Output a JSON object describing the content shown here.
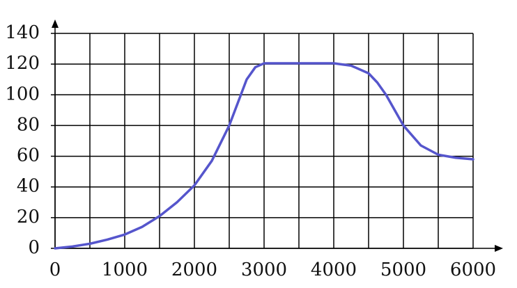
{
  "chart_data": {
    "type": "line",
    "x": [
      0,
      250,
      500,
      750,
      1000,
      1250,
      1500,
      1750,
      2000,
      2250,
      2500,
      2625,
      2750,
      2875,
      3000,
      3500,
      4000,
      4250,
      4500,
      4625,
      4750,
      4875,
      5000,
      5250,
      5500,
      5750,
      6000
    ],
    "series": [
      {
        "color": "#5555cc",
        "values": [
          0,
          1.2,
          3,
          5.7,
          9,
          14,
          21,
          30,
          41,
          57,
          80,
          95,
          110,
          118,
          120.5,
          120.5,
          120.5,
          119,
          114,
          108,
          100,
          90,
          80,
          67,
          61,
          59,
          58
        ]
      }
    ],
    "xlim": [
      0,
      6000
    ],
    "xticks": [
      0,
      1000,
      2000,
      3000,
      4000,
      5000,
      6000
    ],
    "xminor": [
      500,
      1500,
      2500,
      3500,
      4500,
      5500
    ],
    "ylim": [
      0,
      140
    ],
    "yticks": [
      0,
      20,
      40,
      60,
      80,
      100,
      120,
      140
    ],
    "grid": true
  }
}
